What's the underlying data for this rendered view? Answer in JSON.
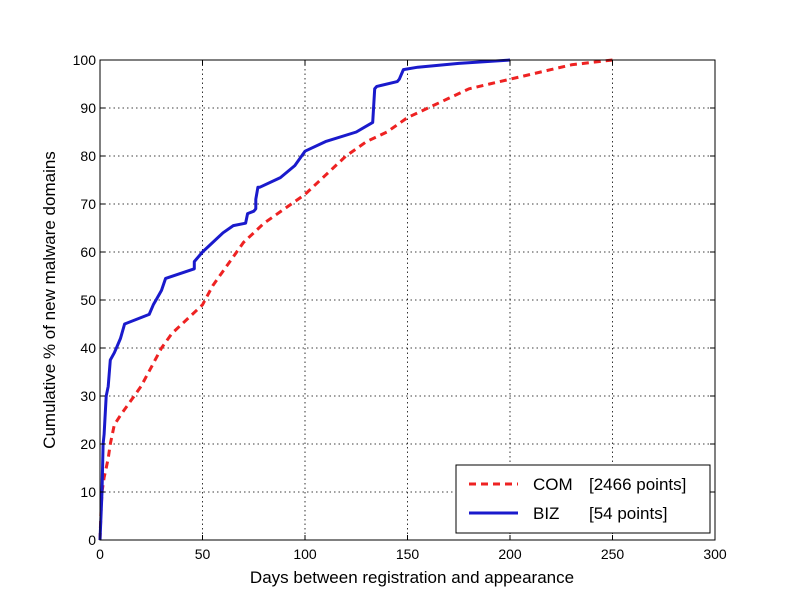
{
  "chart_data": {
    "type": "line",
    "xlabel": "Days between registration and appearance",
    "ylabel": "Cumulative % of new malware domains",
    "xlim": [
      0,
      300
    ],
    "ylim": [
      0,
      100
    ],
    "xticks": [
      0,
      50,
      100,
      150,
      200,
      250,
      300
    ],
    "yticks": [
      0,
      10,
      20,
      30,
      40,
      50,
      60,
      70,
      80,
      90,
      100
    ],
    "grid": true,
    "legend_position": "bottom-right",
    "series": [
      {
        "name": "COM",
        "legend_count": "[2466 points]",
        "color": "#ee2222",
        "style": "dashed",
        "x": [
          0,
          0.5,
          1,
          2,
          3,
          4,
          5,
          7,
          10,
          15,
          20,
          25,
          30,
          35,
          40,
          45,
          50,
          55,
          60,
          65,
          70,
          75,
          80,
          90,
          100,
          110,
          120,
          130,
          140,
          150,
          160,
          170,
          180,
          190,
          200,
          210,
          220,
          230,
          240,
          250
        ],
        "y": [
          0,
          6,
          10,
          13,
          15,
          17,
          20,
          24,
          26,
          29,
          32,
          36,
          40,
          43,
          45,
          47,
          49,
          53,
          56,
          59,
          62,
          64,
          66,
          69,
          72,
          76,
          80,
          83,
          85,
          88,
          90,
          92,
          94,
          95,
          96,
          97,
          98,
          99,
          99.5,
          100
        ]
      },
      {
        "name": "BIZ",
        "legend_count": "[54 points]",
        "color": "#1a1acc",
        "style": "solid",
        "x": [
          0,
          1,
          1.5,
          2,
          3,
          4,
          5,
          7,
          8,
          10,
          12,
          24,
          26,
          28,
          30,
          32,
          46,
          46,
          50,
          55,
          60,
          65,
          71,
          72,
          75,
          76,
          76,
          77,
          78,
          88,
          95,
          100,
          110,
          125,
          133,
          134,
          135,
          145,
          146,
          148,
          155,
          175,
          200
        ],
        "y": [
          0,
          10,
          20,
          22,
          30,
          32,
          37.5,
          39,
          40,
          42,
          45,
          47,
          49,
          50.5,
          52,
          54.5,
          56.5,
          58,
          60,
          62,
          64,
          65.5,
          66,
          68,
          68.5,
          69,
          71,
          73.5,
          73.5,
          75.5,
          78,
          81,
          83,
          85,
          87,
          94,
          94.5,
          95.5,
          96,
          98,
          98.5,
          99.3,
          100
        ]
      }
    ]
  }
}
